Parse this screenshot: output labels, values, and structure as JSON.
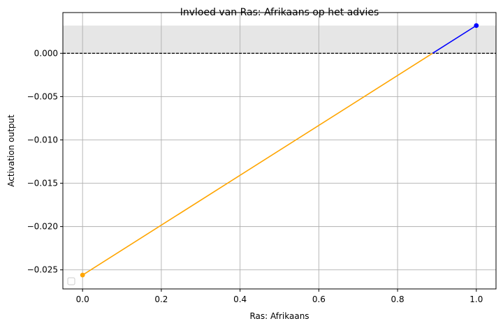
{
  "chart_data": {
    "type": "line",
    "title": "Invloed van Ras: Afrikaans op het advies",
    "xlabel": "Ras: Afrikaans",
    "ylabel": "Activation output",
    "xlim": [
      -0.05,
      1.05
    ],
    "ylim": [
      -0.0272,
      0.0047
    ],
    "xticks": [
      0.0,
      0.2,
      0.4,
      0.6,
      0.8,
      1.0
    ],
    "xtick_labels": [
      "0.0",
      "0.2",
      "0.4",
      "0.6",
      "0.8",
      "1.0"
    ],
    "yticks": [
      -0.025,
      -0.02,
      -0.015,
      -0.01,
      -0.005,
      0.0
    ],
    "ytick_labels": [
      "−0.025",
      "−0.020",
      "−0.015",
      "−0.010",
      "−0.005",
      "0.000"
    ],
    "grid": true,
    "legend": "lower-left (empty)",
    "reference_line": {
      "y": 0.0,
      "style": "dashed",
      "color": "#000000"
    },
    "shaded_band": {
      "y_from": 0.0,
      "y_to": 0.0032,
      "color": "#e6e6e6"
    },
    "points": [
      {
        "x": 0.0,
        "y": -0.0256,
        "color": "#ffa500"
      },
      {
        "x": 1.0,
        "y": 0.0032,
        "color": "#0000ff"
      }
    ],
    "segments": [
      {
        "x": [
          0.0,
          0.889
        ],
        "y": [
          -0.0256,
          0.0
        ],
        "color": "#ffa500"
      },
      {
        "x": [
          0.889,
          1.0
        ],
        "y": [
          0.0,
          0.0032
        ],
        "color": "#0000ff"
      }
    ]
  }
}
